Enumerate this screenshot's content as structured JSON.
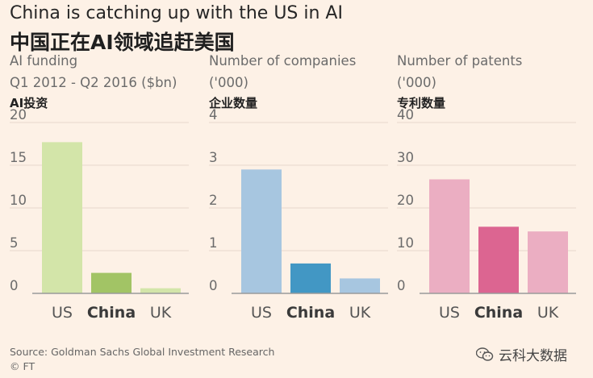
{
  "header": {
    "title_en": "China is catching up with the US in AI",
    "title_zh": "中国正在AI领域追赶美国"
  },
  "footer": {
    "source": "Source: Goldman Sachs Global Investment Research",
    "copyright": "© FT",
    "watermark_text": "云科大数据",
    "watermark_icon": "wechat-icon"
  },
  "colors": {
    "funding_light": "#d3e5a9",
    "funding_dark": "#a2c465",
    "companies_light": "#a7c6e0",
    "companies_dark": "#4297c4",
    "patents_light": "#ebaec2",
    "patents_dark": "#dc6591",
    "grid": "#e6d8cc",
    "axis": "#9a9a9a"
  },
  "chart_data": [
    {
      "type": "bar",
      "title": "AI funding",
      "subtitle": "Q1 2012 - Q2 2016 ($bn)",
      "title_zh": "AI投资",
      "categories": [
        "US",
        "China",
        "UK"
      ],
      "highlight": "China",
      "values": [
        17.7,
        2.4,
        0.6
      ],
      "ylim": [
        0,
        20
      ],
      "yticks": [
        0,
        5,
        10,
        15,
        20
      ],
      "grid": true
    },
    {
      "type": "bar",
      "title": "Number of companies",
      "subtitle": "('000)",
      "title_zh": "企业数量",
      "categories": [
        "US",
        "China",
        "UK"
      ],
      "highlight": "China",
      "values": [
        2.9,
        0.7,
        0.35
      ],
      "ylim": [
        0,
        4
      ],
      "yticks": [
        0,
        1,
        2,
        3,
        4
      ],
      "grid": true
    },
    {
      "type": "bar",
      "title": "Number of patents",
      "subtitle": "('000)",
      "title_zh": "专利数量",
      "categories": [
        "US",
        "China",
        "UK"
      ],
      "highlight": "China",
      "values": [
        26.7,
        15.6,
        14.5
      ],
      "ylim": [
        0,
        40
      ],
      "yticks": [
        0,
        10,
        20,
        30,
        40
      ],
      "grid": true
    }
  ]
}
